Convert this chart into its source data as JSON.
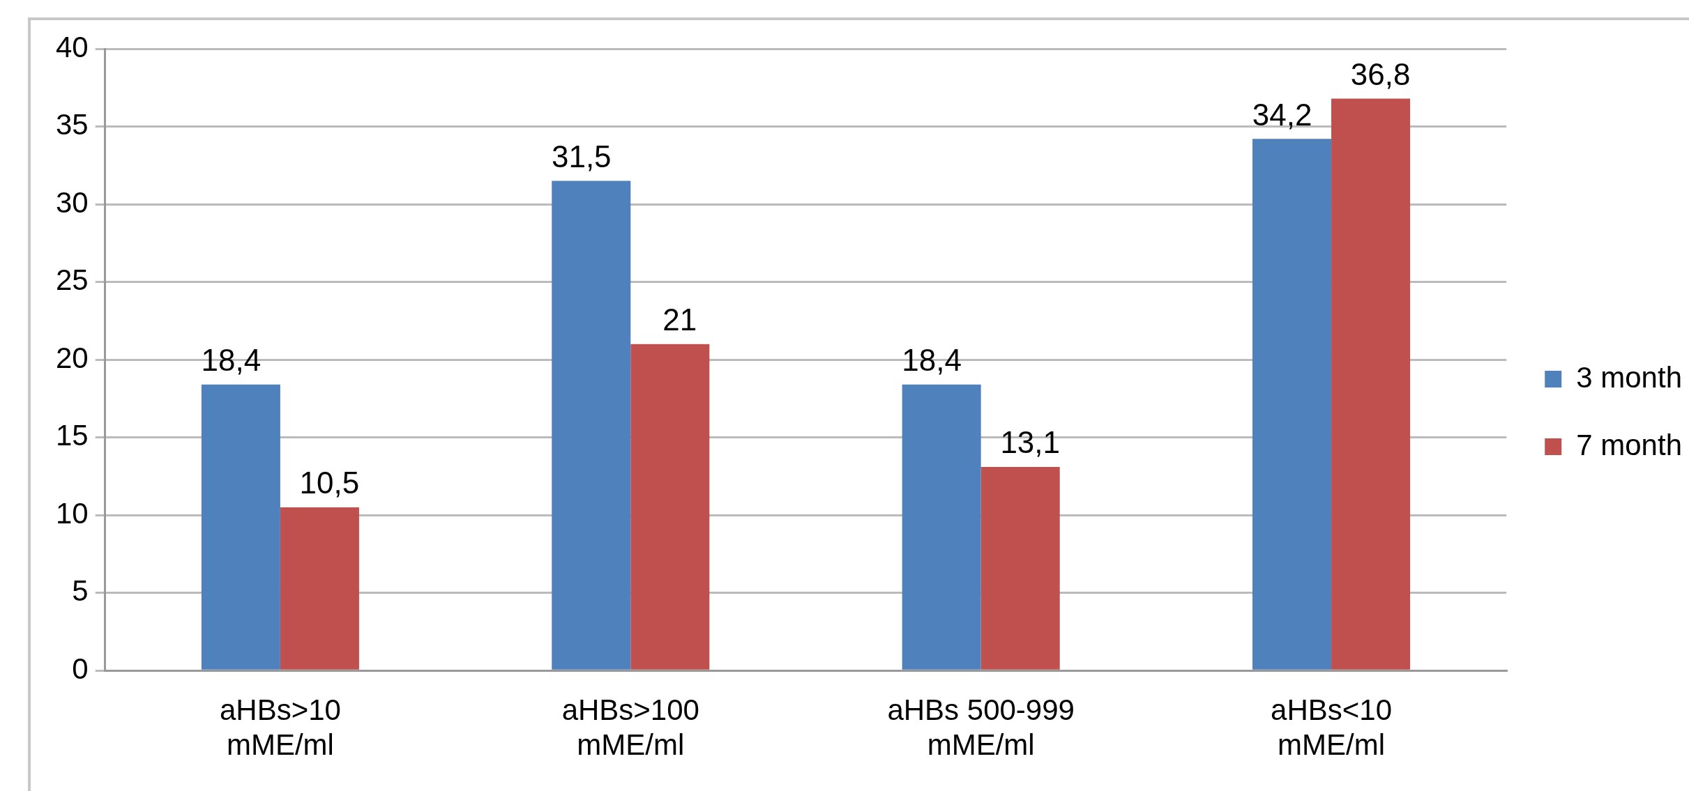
{
  "chart_data": {
    "type": "bar",
    "categories": [
      "aHBs>10 mME/ml",
      "aHBs>100 mME/ml",
      "aHBs 500-999 mME/ml",
      "aHBs<10 mME/ml"
    ],
    "series": [
      {
        "name": "3 month",
        "color": "#4f81bd",
        "values": [
          18.4,
          31.5,
          18.4,
          34.2
        ],
        "value_labels": [
          "18,4",
          "31,5",
          "18,4",
          "34,2"
        ]
      },
      {
        "name": "7 month",
        "color": "#c0504d",
        "values": [
          10.5,
          21,
          13.1,
          36.8
        ],
        "value_labels": [
          "10,5",
          "21",
          "13,1",
          "36,8"
        ]
      }
    ],
    "ylim": [
      0,
      40
    ],
    "yticks": [
      0,
      5,
      10,
      15,
      20,
      25,
      30,
      35,
      40
    ],
    "grid": "y",
    "legend": "right"
  }
}
